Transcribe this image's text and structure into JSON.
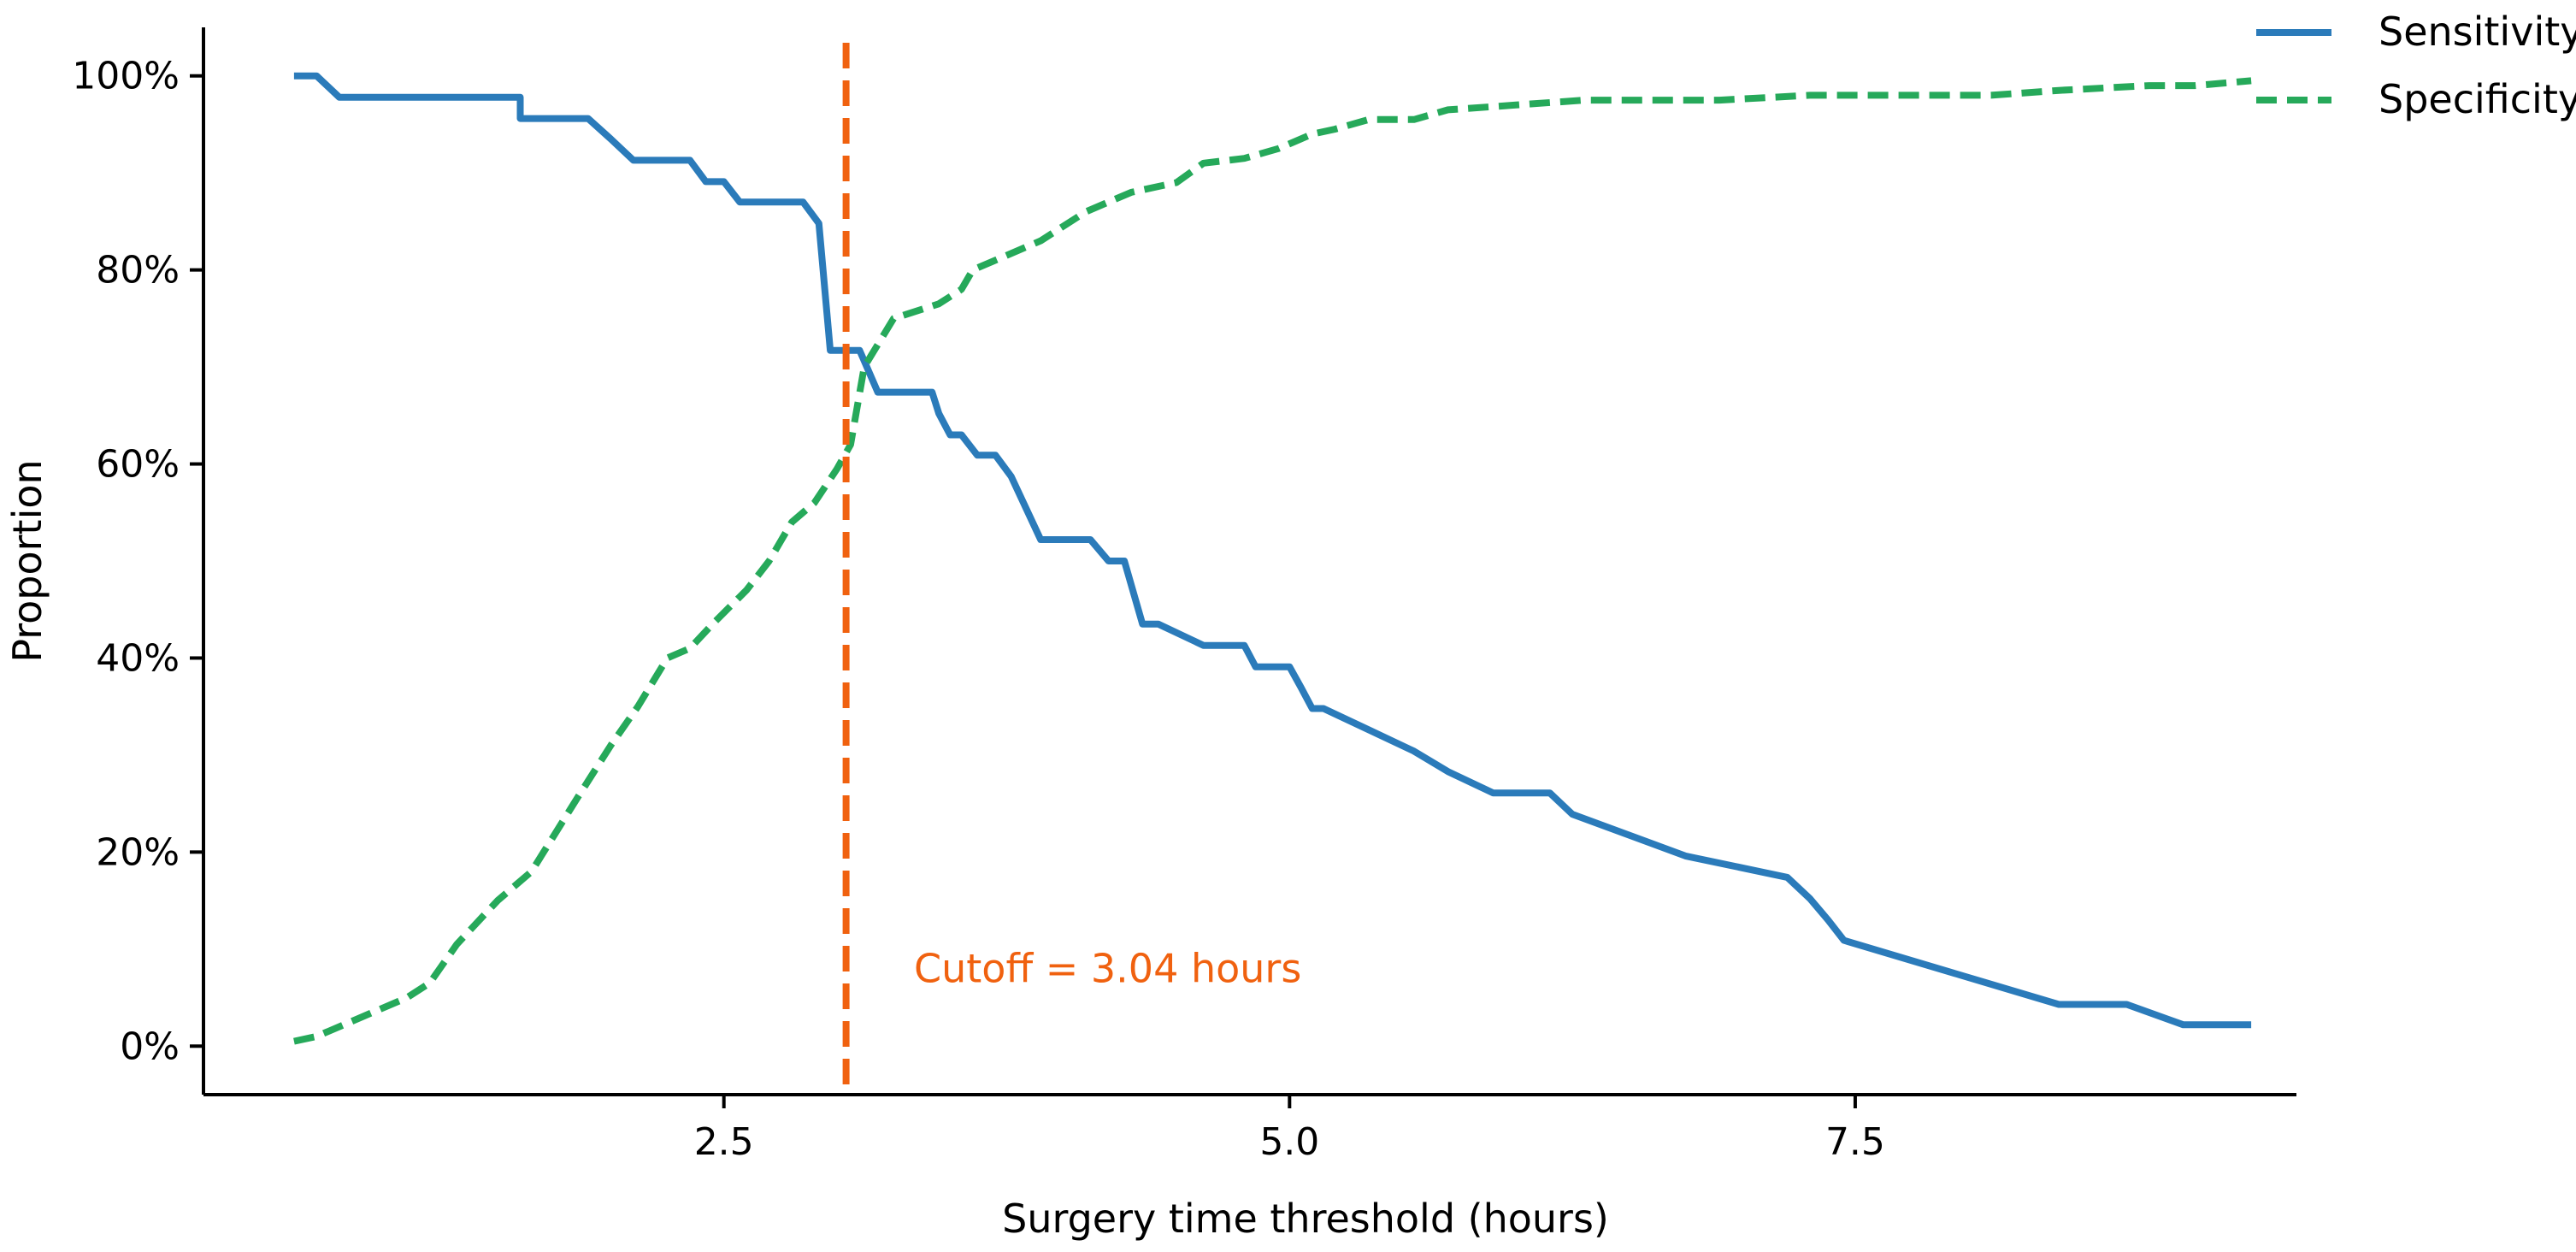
{
  "chart_data": {
    "type": "line",
    "xlabel": "Surgery time threshold (hours)",
    "ylabel": "Proportion",
    "xlim": [
      0.2,
      9.45
    ],
    "ylim": [
      -0.05,
      1.05
    ],
    "x_ticks": [
      2.5,
      5.0,
      7.5
    ],
    "x_tick_labels": [
      "2.5",
      "5.0",
      "7.5"
    ],
    "y_ticks": [
      0,
      0.2,
      0.4,
      0.6,
      0.8,
      1.0
    ],
    "y_tick_labels": [
      "0%",
      "20%",
      "40%",
      "60%",
      "80%",
      "100%"
    ],
    "grid": false,
    "legend_position": "top-right",
    "series": [
      {
        "name": "Sensitivity",
        "color": "#2b7bba",
        "dash": "solid",
        "points": [
          [
            0.6,
            1.0
          ],
          [
            0.7,
            1.0
          ],
          [
            0.8,
            0.978
          ],
          [
            1.6,
            0.978
          ],
          [
            1.6,
            0.956
          ],
          [
            1.9,
            0.956
          ],
          [
            2.0,
            0.935
          ],
          [
            2.1,
            0.913
          ],
          [
            2.35,
            0.913
          ],
          [
            2.42,
            0.891
          ],
          [
            2.5,
            0.891
          ],
          [
            2.57,
            0.87
          ],
          [
            2.85,
            0.87
          ],
          [
            2.92,
            0.848
          ],
          [
            2.97,
            0.717
          ],
          [
            3.04,
            0.717
          ],
          [
            3.1,
            0.717
          ],
          [
            3.18,
            0.674
          ],
          [
            3.42,
            0.674
          ],
          [
            3.45,
            0.652
          ],
          [
            3.5,
            0.63
          ],
          [
            3.55,
            0.63
          ],
          [
            3.62,
            0.609
          ],
          [
            3.7,
            0.609
          ],
          [
            3.77,
            0.587
          ],
          [
            3.9,
            0.522
          ],
          [
            4.12,
            0.522
          ],
          [
            4.2,
            0.5
          ],
          [
            4.27,
            0.5
          ],
          [
            4.35,
            0.435
          ],
          [
            4.42,
            0.435
          ],
          [
            4.62,
            0.413
          ],
          [
            4.8,
            0.413
          ],
          [
            4.85,
            0.391
          ],
          [
            5.0,
            0.391
          ],
          [
            5.05,
            0.37
          ],
          [
            5.1,
            0.348
          ],
          [
            5.15,
            0.348
          ],
          [
            5.35,
            0.326
          ],
          [
            5.55,
            0.304
          ],
          [
            5.7,
            0.283
          ],
          [
            5.9,
            0.261
          ],
          [
            6.15,
            0.261
          ],
          [
            6.25,
            0.239
          ],
          [
            6.75,
            0.196
          ],
          [
            7.2,
            0.174
          ],
          [
            7.3,
            0.152
          ],
          [
            7.38,
            0.13
          ],
          [
            7.45,
            0.109
          ],
          [
            8.4,
            0.043
          ],
          [
            8.7,
            0.043
          ],
          [
            8.95,
            0.022
          ],
          [
            9.25,
            0.022
          ]
        ]
      },
      {
        "name": "Specificity",
        "color": "#26a95a",
        "dash": "dashed",
        "points": [
          [
            0.6,
            0.005
          ],
          [
            0.7,
            0.01
          ],
          [
            0.9,
            0.03
          ],
          [
            1.1,
            0.05
          ],
          [
            1.2,
            0.065
          ],
          [
            1.32,
            0.105
          ],
          [
            1.5,
            0.15
          ],
          [
            1.65,
            0.18
          ],
          [
            1.85,
            0.255
          ],
          [
            2.0,
            0.31
          ],
          [
            2.12,
            0.35
          ],
          [
            2.25,
            0.4
          ],
          [
            2.35,
            0.41
          ],
          [
            2.45,
            0.435
          ],
          [
            2.6,
            0.47
          ],
          [
            2.7,
            0.5
          ],
          [
            2.8,
            0.54
          ],
          [
            2.9,
            0.56
          ],
          [
            3.0,
            0.595
          ],
          [
            3.06,
            0.62
          ],
          [
            3.12,
            0.7
          ],
          [
            3.25,
            0.75
          ],
          [
            3.45,
            0.765
          ],
          [
            3.55,
            0.78
          ],
          [
            3.6,
            0.8
          ],
          [
            3.9,
            0.83
          ],
          [
            4.1,
            0.86
          ],
          [
            4.3,
            0.88
          ],
          [
            4.5,
            0.89
          ],
          [
            4.62,
            0.91
          ],
          [
            4.8,
            0.915
          ],
          [
            4.95,
            0.925
          ],
          [
            5.1,
            0.94
          ],
          [
            5.2,
            0.945
          ],
          [
            5.35,
            0.955
          ],
          [
            5.55,
            0.955
          ],
          [
            5.7,
            0.965
          ],
          [
            6.0,
            0.97
          ],
          [
            6.3,
            0.975
          ],
          [
            6.9,
            0.975
          ],
          [
            7.3,
            0.98
          ],
          [
            8.1,
            0.98
          ],
          [
            8.4,
            0.985
          ],
          [
            8.8,
            0.99
          ],
          [
            9.0,
            0.99
          ],
          [
            9.25,
            0.995
          ]
        ]
      }
    ],
    "vline": {
      "x": 3.04,
      "color": "#f0610f",
      "dash": "dashed"
    },
    "annotation": {
      "text": "Cutoff = 3.04 hours",
      "x": 3.34,
      "y": 0.08,
      "color": "#f0610f"
    }
  }
}
